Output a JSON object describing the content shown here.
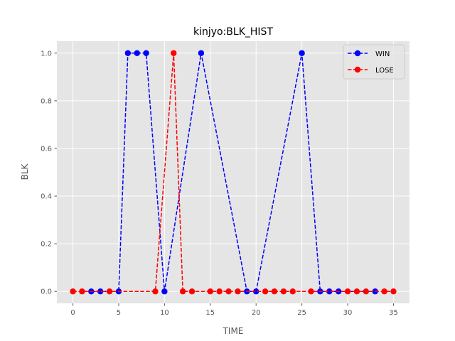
{
  "chart_data": {
    "type": "line",
    "title": "kinjyo:BLK_HIST",
    "xlabel": "TIME",
    "ylabel": "BLK",
    "xlim": [
      -1.75,
      36.75
    ],
    "ylim": [
      -0.05,
      1.05
    ],
    "xticks": [
      0,
      5,
      10,
      15,
      20,
      25,
      30,
      35
    ],
    "yticks": [
      0.0,
      0.2,
      0.4,
      0.6,
      0.8,
      1.0
    ],
    "xtick_labels": [
      "0",
      "5",
      "10",
      "15",
      "20",
      "25",
      "30",
      "35"
    ],
    "ytick_labels": [
      "0.0",
      "0.2",
      "0.4",
      "0.6",
      "0.8",
      "1.0"
    ],
    "grid": true,
    "legend_position": "top-right",
    "series": [
      {
        "name": "WIN",
        "color": "#0000ff",
        "x": [
          2,
          3,
          5,
          6,
          7,
          8,
          10,
          14,
          19,
          20,
          25,
          27,
          28,
          29,
          33
        ],
        "y": [
          0,
          0,
          0,
          1,
          1,
          1,
          0,
          1,
          0,
          0,
          1,
          0,
          0,
          0,
          0
        ]
      },
      {
        "name": "LOSE",
        "color": "#ff0000",
        "x": [
          0,
          1,
          4,
          9,
          11,
          12,
          13,
          15,
          16,
          17,
          18,
          21,
          22,
          23,
          24,
          26,
          30,
          31,
          32,
          34,
          35
        ],
        "y": [
          0,
          0,
          0,
          0,
          1,
          0,
          0,
          0,
          0,
          0,
          0,
          0,
          0,
          0,
          0,
          0,
          0,
          0,
          0,
          0,
          0
        ]
      }
    ]
  }
}
